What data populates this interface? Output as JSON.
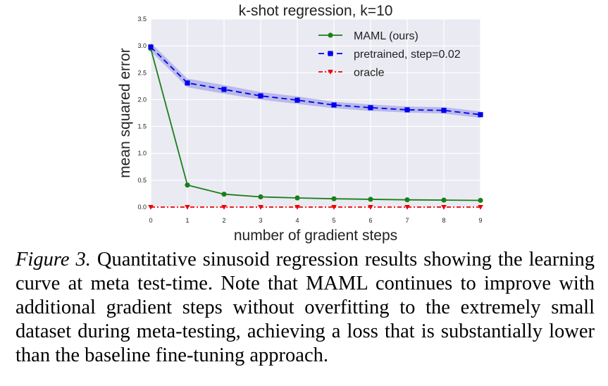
{
  "chart_data": {
    "type": "line",
    "title": "k-shot regression, k=10",
    "xlabel": "number of gradient steps",
    "ylabel": "mean squared error",
    "x": [
      0,
      1,
      2,
      3,
      4,
      5,
      6,
      7,
      8,
      9
    ],
    "xticks": [
      "0",
      "1",
      "2",
      "3",
      "4",
      "5",
      "6",
      "7",
      "8",
      "9"
    ],
    "yticks": [
      "0.0",
      "0.5",
      "1.0",
      "1.5",
      "2.0",
      "2.5",
      "3.0",
      "3.5"
    ],
    "ylim": [
      0,
      3.5
    ],
    "xlim": [
      0,
      9
    ],
    "grid": true,
    "legend_position": "top-right",
    "series": [
      {
        "name": "MAML (ours)",
        "color": "#1a7f1a",
        "marker": "circle",
        "linestyle": "solid",
        "values": [
          2.95,
          0.41,
          0.24,
          0.19,
          0.17,
          0.155,
          0.145,
          0.135,
          0.13,
          0.125
        ]
      },
      {
        "name": "pretrained, step=0.02",
        "color": "#0000ee",
        "marker": "square",
        "linestyle": "dashed",
        "band_color": "#8f8fe6",
        "values": [
          2.98,
          2.31,
          2.19,
          2.07,
          1.99,
          1.9,
          1.85,
          1.81,
          1.8,
          1.72
        ],
        "lower": [
          2.9,
          2.23,
          2.11,
          2.0,
          1.92,
          1.84,
          1.79,
          1.76,
          1.74,
          1.66
        ],
        "upper": [
          3.06,
          2.39,
          2.27,
          2.14,
          2.06,
          1.96,
          1.91,
          1.87,
          1.86,
          1.78
        ]
      },
      {
        "name": "oracle",
        "color": "#ee0000",
        "marker": "triangle-down",
        "linestyle": "dashdot",
        "values": [
          0,
          0,
          0,
          0,
          0,
          0,
          0,
          0,
          0,
          0
        ]
      }
    ]
  },
  "caption": {
    "label": "Figure 3.",
    "text": " Quantitative sinusoid regression results showing the learning curve at meta test-time. Note that MAML continues to improve with additional gradient steps without overfitting to the extremely small dataset during meta-testing, achieving a loss that is substantially lower than the baseline fine-tuning approach."
  }
}
